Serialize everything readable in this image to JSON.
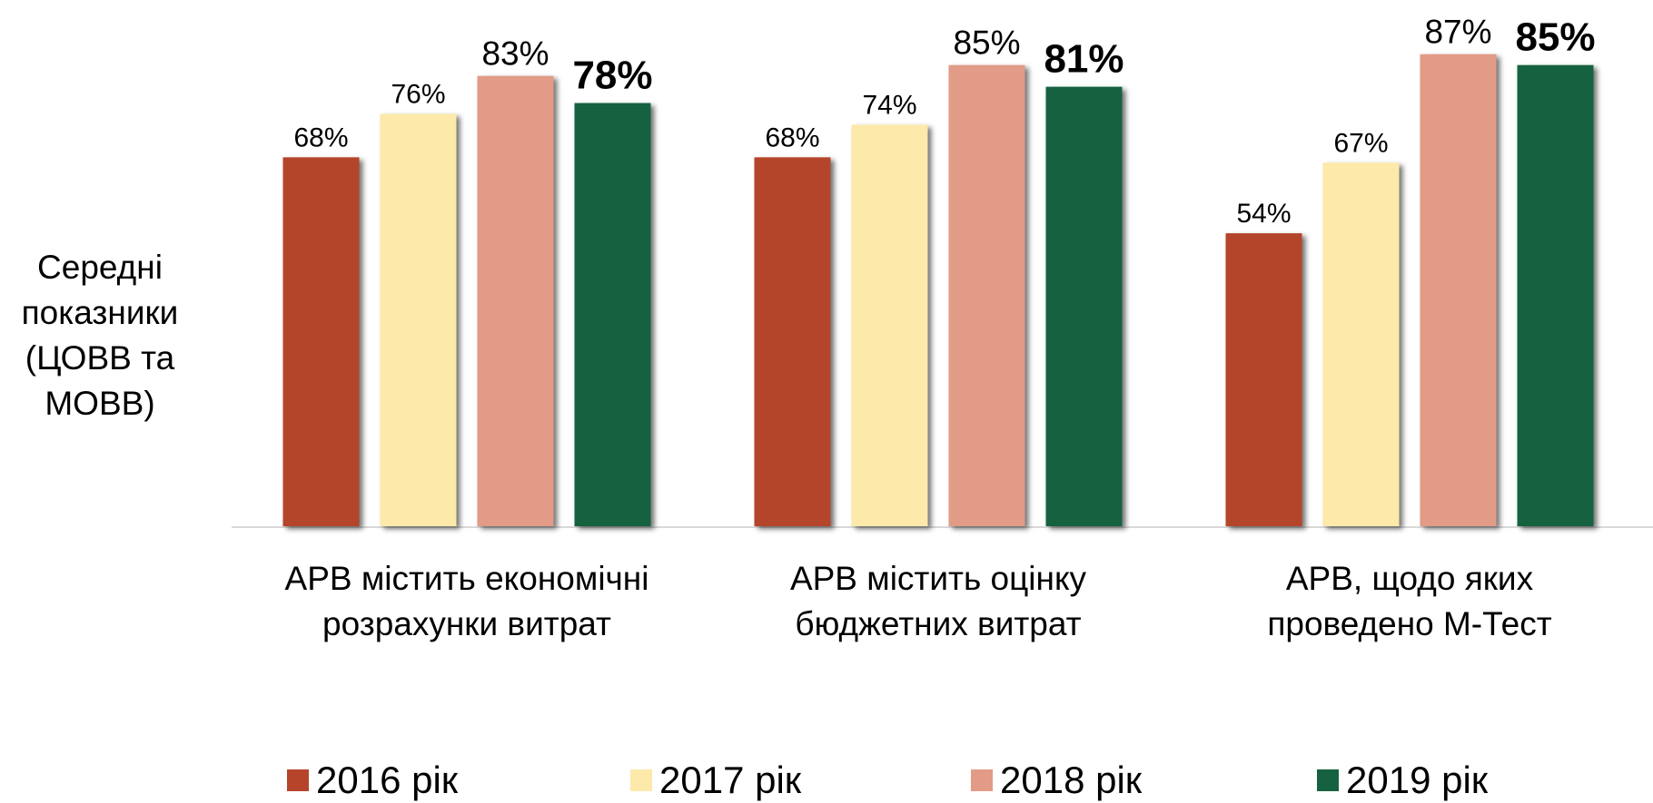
{
  "chart_data": {
    "type": "bar",
    "y_label": [
      "Середні",
      "показники",
      "(ЦОВВ та",
      "МОВВ)"
    ],
    "categories": [
      [
        "АРВ містить економічні",
        "розрахунки витрат"
      ],
      [
        "АРВ містить оцінку",
        "бюджетних витрат"
      ],
      [
        "АРВ, щодо яких",
        "проведено М-Тест"
      ]
    ],
    "series": [
      {
        "name": "2016 рік",
        "color": "#b5442a",
        "values": [
          68,
          68,
          54
        ],
        "value_labels": [
          "68%",
          "68%",
          "54%"
        ]
      },
      {
        "name": "2017 рік",
        "color": "#fde9a9",
        "values": [
          76,
          74,
          67
        ],
        "value_labels": [
          "76%",
          "74%",
          "67%"
        ]
      },
      {
        "name": "2018 рік",
        "color": "#e29b86",
        "values": [
          83,
          85,
          87
        ],
        "value_labels": [
          "83%",
          "85%",
          "87%"
        ]
      },
      {
        "name": "2019 рік",
        "color": "#166240",
        "values": [
          78,
          81,
          85
        ],
        "value_labels": [
          "78%",
          "81%",
          "85%"
        ],
        "label_bold": true
      }
    ],
    "ylim": [
      0,
      100
    ],
    "legend": "bottom"
  }
}
